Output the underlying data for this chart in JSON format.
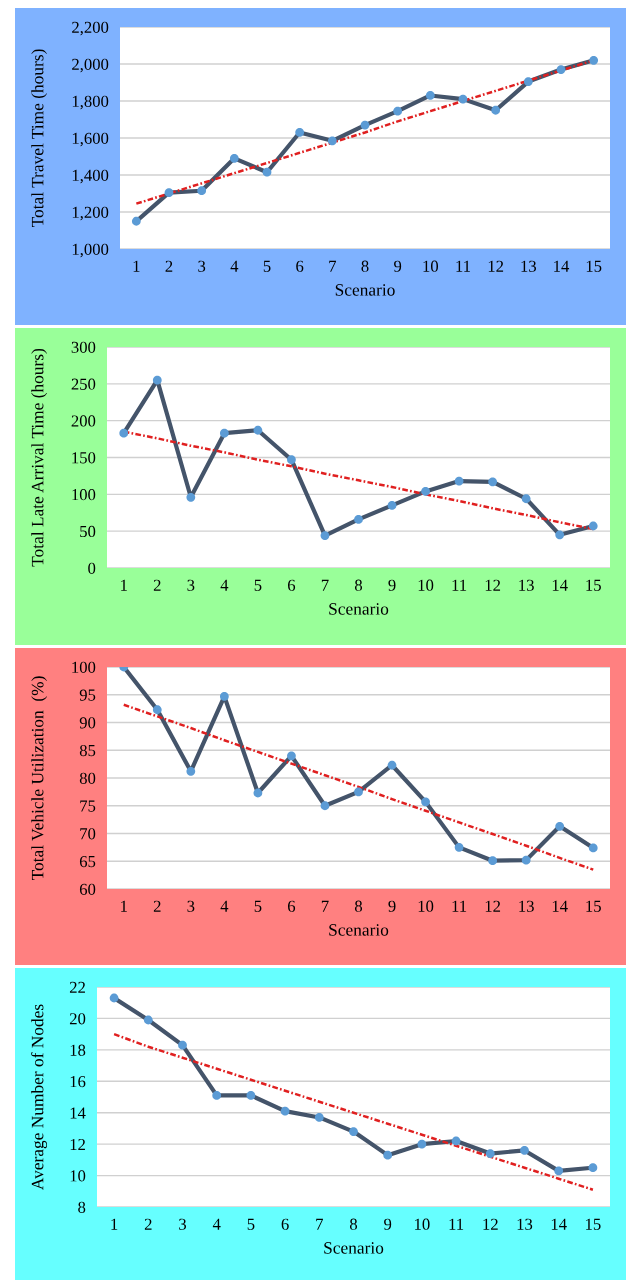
{
  "chart_data": [
    {
      "type": "line",
      "xlabel": "Scenario",
      "ylabel": "Total Travel Time (hours)",
      "categories": [
        "1",
        "2",
        "3",
        "4",
        "5",
        "6",
        "7",
        "8",
        "9",
        "10",
        "11",
        "12",
        "13",
        "14",
        "15"
      ],
      "series": [
        {
          "color": "#44546a",
          "colors": [
            "#5b9bd5",
            "#5b9bd5",
            "#5b9bd5",
            "#5b9bd5",
            "#5b9bd5",
            "#5b9bd5",
            "#5b9bd5",
            "#5b9bd5",
            "#5b9bd5",
            "#5b9bd5",
            "#5b9bd5",
            "#5b9bd5",
            "#5b9bd5",
            "#5b9bd5",
            "#5b9bd5"
          ],
          "marker": "circle",
          "line_style": "solid",
          "values": [
            1150,
            1305,
            1315,
            1490,
            1415,
            1630,
            1585,
            1670,
            1745,
            1830,
            1810,
            1750,
            1905,
            1970,
            2020
          ]
        },
        {
          "color": "#e02020",
          "marker": "none",
          "line_style": "dashdot",
          "values": [
            1245,
            1300,
            1355,
            1410,
            1465,
            1520,
            1575,
            1630,
            1690,
            1745,
            1800,
            1855,
            1910,
            1965,
            2020
          ]
        }
      ],
      "ylim": [
        1000,
        2200
      ],
      "yticks": [
        {
          "value": 1000,
          "label": "1,000"
        },
        {
          "value": 1200,
          "label": "1,200"
        },
        {
          "value": 1400,
          "label": "1,400"
        },
        {
          "value": 1600,
          "label": "1,600"
        },
        {
          "value": 1800,
          "label": "1,800"
        },
        {
          "value": 2000,
          "label": "2,000"
        },
        {
          "value": 2200,
          "label": "2,200"
        }
      ],
      "grid": "y"
    },
    {
      "type": "line",
      "xlabel": "Scenario",
      "ylabel": "Total Late Arrival Time (hours)",
      "categories": [
        "1",
        "2",
        "3",
        "4",
        "5",
        "6",
        "7",
        "8",
        "9",
        "10",
        "11",
        "12",
        "13",
        "14",
        "15"
      ],
      "series": [
        {
          "color": "#44546a",
          "colors": [
            "#5b9bd5",
            "#5b9bd5",
            "#5b9bd5",
            "#5b9bd5",
            "#5b9bd5",
            "#5b9bd5",
            "#5b9bd5",
            "#5b9bd5",
            "#5b9bd5",
            "#5b9bd5",
            "#5b9bd5",
            "#5b9bd5",
            "#5b9bd5",
            "#5b9bd5",
            "#5b9bd5"
          ],
          "marker": "circle",
          "line_style": "solid",
          "values": [
            183,
            255,
            96,
            183,
            187,
            147,
            44,
            66,
            85,
            104,
            118,
            117,
            94,
            45,
            57
          ]
        },
        {
          "color": "#e02020",
          "marker": "none",
          "line_style": "dashdot",
          "values": [
            185,
            176,
            166,
            157,
            147,
            138,
            128,
            119,
            110,
            100,
            91,
            81,
            72,
            62,
            53
          ]
        }
      ],
      "ylim": [
        0,
        300
      ],
      "yticks": [
        0,
        50,
        100,
        150,
        200,
        250,
        300
      ],
      "grid": "y"
    },
    {
      "type": "line",
      "xlabel": "Scenario",
      "ylabel": "Total Vehicle Utilization  (%)",
      "categories": [
        "1",
        "2",
        "3",
        "4",
        "5",
        "6",
        "7",
        "8",
        "9",
        "10",
        "11",
        "12",
        "13",
        "14",
        "15"
      ],
      "series": [
        {
          "color": "#44546a",
          "colors": [
            "#5b9bd5",
            "#5b9bd5",
            "#5b9bd5",
            "#5b9bd5",
            "#5b9bd5",
            "#5b9bd5",
            "#5b9bd5",
            "#5b9bd5",
            "#5b9bd5",
            "#5b9bd5",
            "#5b9bd5",
            "#5b9bd5",
            "#5b9bd5",
            "#5b9bd5",
            "#5b9bd5"
          ],
          "marker": "circle",
          "line_style": "solid",
          "values": [
            100,
            92.3,
            81.2,
            94.7,
            77.3,
            84,
            75,
            77.5,
            82.3,
            75.7,
            67.5,
            65.1,
            65.2,
            71.3,
            67.4
          ]
        },
        {
          "color": "#e02020",
          "marker": "none",
          "line_style": "dashdot",
          "values": [
            93.2,
            91.1,
            89.0,
            86.8,
            84.7,
            82.6,
            80.5,
            78.4,
            76.2,
            74.1,
            72.0,
            69.9,
            67.8,
            65.6,
            63.5
          ]
        }
      ],
      "ylim": [
        60,
        100
      ],
      "yticks": [
        60,
        65,
        70,
        75,
        80,
        85,
        90,
        95,
        100
      ],
      "grid": "y"
    },
    {
      "type": "line",
      "xlabel": "Scenario",
      "ylabel": "Average Number of Nodes",
      "categories": [
        "1",
        "2",
        "3",
        "4",
        "5",
        "6",
        "7",
        "8",
        "9",
        "10",
        "11",
        "12",
        "13",
        "14",
        "15"
      ],
      "series": [
        {
          "color": "#44546a",
          "colors": [
            "#5b9bd5",
            "#5b9bd5",
            "#5b9bd5",
            "#5b9bd5",
            "#5b9bd5",
            "#5b9bd5",
            "#5b9bd5",
            "#5b9bd5",
            "#5b9bd5",
            "#5b9bd5",
            "#5b9bd5",
            "#5b9bd5",
            "#5b9bd5",
            "#5b9bd5",
            "#5b9bd5"
          ],
          "marker": "circle",
          "line_style": "solid",
          "values": [
            21.3,
            19.9,
            18.3,
            15.1,
            15.1,
            14.1,
            13.7,
            12.8,
            11.3,
            12.0,
            12.2,
            11.4,
            11.6,
            10.3,
            10.5
          ]
        },
        {
          "color": "#e02020",
          "marker": "none",
          "line_style": "dashdot",
          "values": [
            19.0,
            18.2,
            17.5,
            16.8,
            16.1,
            15.4,
            14.7,
            14.0,
            13.3,
            12.6,
            11.9,
            11.2,
            10.5,
            9.8,
            9.1
          ]
        }
      ],
      "ylim": [
        8,
        22
      ],
      "yticks": [
        8,
        10,
        12,
        14,
        16,
        18,
        20,
        22
      ],
      "grid": "y"
    }
  ]
}
